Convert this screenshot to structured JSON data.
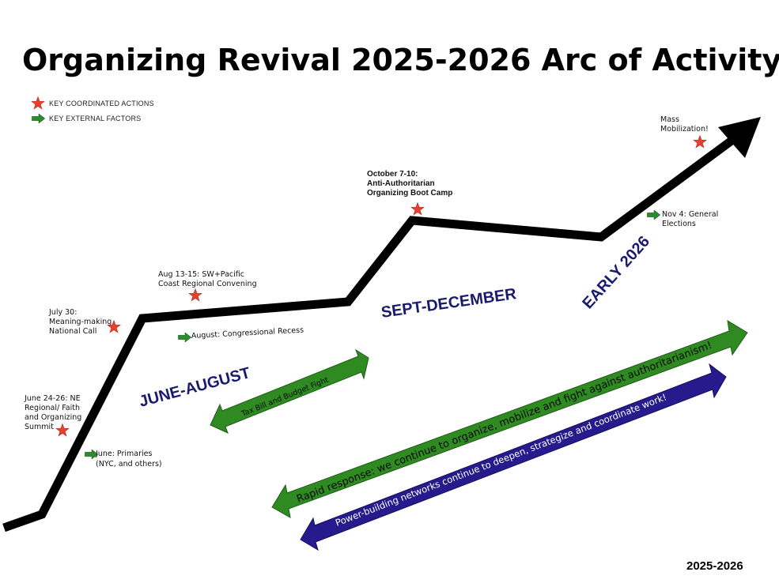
{
  "title": "Organizing Revival 2025-2026 Arc of Activity",
  "legend": {
    "actions_label": "KEY COORDINATED ACTIONS",
    "factors_label": "KEY EXTERNAL FACTORS",
    "actions_icon": "red-star-icon",
    "factors_icon": "green-arrow-icon"
  },
  "periods": {
    "june_august": "JUNE-AUGUST",
    "sept_december": "SEPT-DECEMBER",
    "early_2026": "EARLY 2026"
  },
  "actions": {
    "june_summit": [
      "June 24-26: NE",
      "Regional/ Faith",
      "and Organizing",
      "Summit"
    ],
    "july_call": [
      "July 30:",
      "Meaning-making",
      "National Call"
    ],
    "aug_convening": [
      "Aug 13-15: SW+Pacific",
      "Coast Regional Convening"
    ],
    "boot_camp": [
      "October 7-10:",
      "Anti-Authoritarian",
      "Organizing Boot Camp"
    ],
    "mass_mobilization": [
      "Mass",
      "Mobilization!"
    ]
  },
  "factors": {
    "primaries": [
      "June: Primaries",
      "(NYC, and others)"
    ],
    "recess": "August: Congressional Recess",
    "elections": [
      "Nov 4: General",
      "Elections"
    ]
  },
  "bands": {
    "tax_bill": "Tax Bill and Budget Fight",
    "rapid_response": "Rapid response: we continue to organize, mobilize and fight against authoritarianism!",
    "power_building": "Power-building networks continue to deepen, strategize and coordinate work!"
  },
  "colors": {
    "star": "#e5402e",
    "factor_arrow": "#2e8a2e",
    "green_band": "#2f8a22",
    "blue_band": "#261a8c",
    "period_text": "#1a1a6e",
    "arc": "#000000"
  },
  "footer": "2025-2026"
}
